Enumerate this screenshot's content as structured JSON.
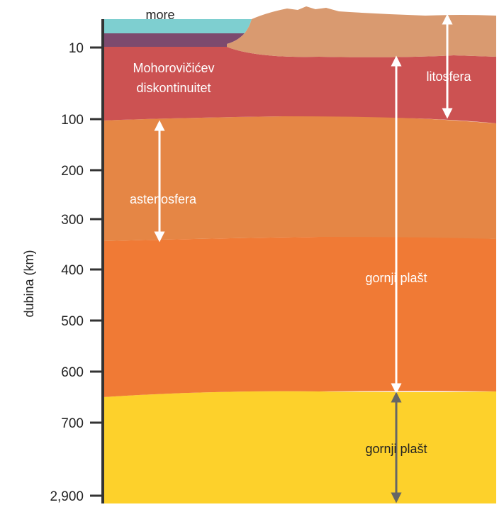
{
  "axis": {
    "title": "dubina (km)",
    "ticks": [
      "10",
      "100",
      "200",
      "300",
      "400",
      "500",
      "600",
      "700",
      "2,900"
    ]
  },
  "labels": {
    "sea": "more",
    "moho": [
      "Mohorovičićev",
      "diskontinuitet"
    ],
    "asthenosphere": "astenosfera",
    "lithosphere": "litosfera",
    "upper_mantle_1": "gornji plašt",
    "upper_mantle_2": "gornji plašt"
  },
  "colors": {
    "sea": "#7ecfd0",
    "oceanic_crust": "#7d4a6e",
    "continent": "#d99a70",
    "lithospheric_mantle": "#cc5252",
    "asthenosphere": "#e58645",
    "upper_mantle": "#f07a35",
    "transition": "#fdd12b",
    "axis": "#333333",
    "arrow_white": "#ffffff",
    "arrow_gray": "#666666"
  }
}
